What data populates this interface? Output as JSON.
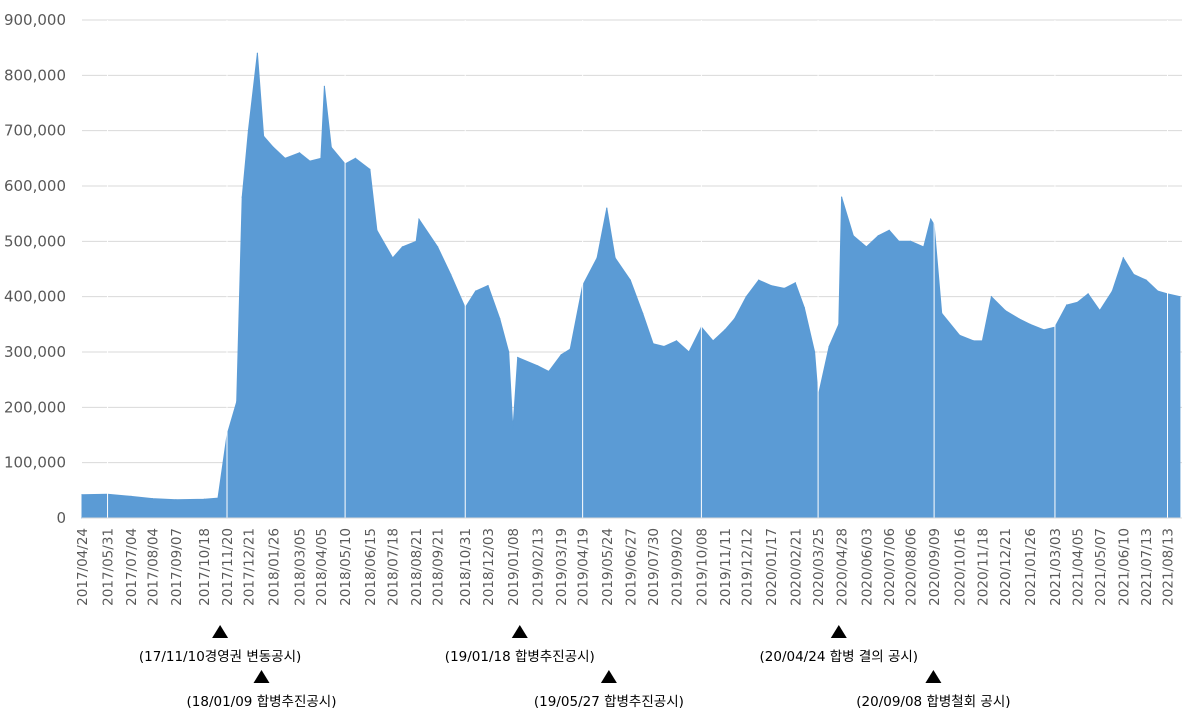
{
  "chart_data": {
    "type": "area",
    "title": "",
    "xlabel": "",
    "ylabel": "",
    "ylim": [
      0,
      900000
    ],
    "grid": true,
    "legend": "none",
    "colors": {
      "series": "#5b9bd5",
      "grid": "#d9d9d9",
      "axis_text": "#595959"
    },
    "y_ticks": [
      0,
      100000,
      200000,
      300000,
      400000,
      500000,
      600000,
      700000,
      800000,
      900000
    ],
    "y_tick_labels": [
      "0",
      "100,000",
      "200,000",
      "300,000",
      "400,000",
      "500,000",
      "600,000",
      "700,000",
      "800,000",
      "900,000"
    ],
    "x_tick_labels": [
      "2017/04/24",
      "2017/05/31",
      "2017/07/04",
      "2017/08/04",
      "2017/09/07",
      "2017/10/18",
      "2017/11/20",
      "2017/12/21",
      "2018/01/26",
      "2018/03/05",
      "2018/04/05",
      "2018/05/10",
      "2018/06/15",
      "2018/07/18",
      "2018/08/21",
      "2018/09/21",
      "2018/10/31",
      "2018/12/03",
      "2019/01/08",
      "2019/02/13",
      "2019/03/19",
      "2019/04/19",
      "2019/05/24",
      "2019/06/27",
      "2019/07/30",
      "2019/09/02",
      "2019/10/08",
      "2019/11/11",
      "2019/12/12",
      "2020/01/17",
      "2020/02/21",
      "2020/03/25",
      "2020/04/28",
      "2020/06/03",
      "2020/07/06",
      "2020/08/06",
      "2020/09/09",
      "2020/10/16",
      "2020/11/18",
      "2020/12/21",
      "2021/01/26",
      "2021/03/03",
      "2021/04/05",
      "2021/05/07",
      "2021/06/10",
      "2021/07/13",
      "2021/08/13"
    ],
    "series": [
      {
        "x": [
          "2017/04/24",
          "2017/05/31",
          "2017/07/04",
          "2017/08/04",
          "2017/09/07",
          "2017/10/18",
          "2017/11/07",
          "2017/11/20",
          "2017/12/04",
          "2017/12/12",
          "2017/12/21",
          "2018/01/03",
          "2018/01/12",
          "2018/01/26",
          "2018/02/12",
          "2018/03/05",
          "2018/03/20",
          "2018/04/05",
          "2018/04/10",
          "2018/04/20",
          "2018/05/10",
          "2018/05/25",
          "2018/06/15",
          "2018/06/25",
          "2018/07/18",
          "2018/08/01",
          "2018/08/21",
          "2018/08/25",
          "2018/09/21",
          "2018/10/10",
          "2018/10/31",
          "2018/11/15",
          "2018/12/03",
          "2018/12/20",
          "2019/01/02",
          "2019/01/08",
          "2019/01/15",
          "2019/02/13",
          "2019/03/01",
          "2019/03/19",
          "2019/04/01",
          "2019/04/19",
          "2019/05/10",
          "2019/05/24",
          "2019/06/05",
          "2019/06/27",
          "2019/07/15",
          "2019/07/30",
          "2019/08/15",
          "2019/09/02",
          "2019/09/20",
          "2019/10/08",
          "2019/10/25",
          "2019/11/11",
          "2019/11/25",
          "2019/12/12",
          "2019/12/30",
          "2020/01/17",
          "2020/02/05",
          "2020/02/21",
          "2020/03/05",
          "2020/03/20",
          "2020/03/25",
          "2020/04/10",
          "2020/04/24",
          "2020/04/28",
          "2020/05/15",
          "2020/06/03",
          "2020/06/20",
          "2020/07/06",
          "2020/07/20",
          "2020/08/06",
          "2020/08/25",
          "2020/09/04",
          "2020/09/09",
          "2020/09/20",
          "2020/10/16",
          "2020/11/05",
          "2020/11/18",
          "2020/12/01",
          "2020/12/21",
          "2021/01/10",
          "2021/01/26",
          "2021/02/15",
          "2021/03/03",
          "2021/03/20",
          "2021/04/05",
          "2021/04/20",
          "2021/05/07",
          "2021/05/25",
          "2021/06/10",
          "2021/06/25",
          "2021/07/13",
          "2021/07/30",
          "2021/08/13",
          "2021/08/31"
        ],
        "values": [
          42000,
          43000,
          39000,
          35000,
          33000,
          34000,
          36000,
          150000,
          210000,
          580000,
          700000,
          840000,
          690000,
          670000,
          650000,
          660000,
          645000,
          650000,
          780000,
          670000,
          640000,
          650000,
          630000,
          520000,
          470000,
          490000,
          500000,
          540000,
          490000,
          440000,
          380000,
          410000,
          420000,
          360000,
          300000,
          160000,
          290000,
          275000,
          265000,
          295000,
          305000,
          420000,
          470000,
          560000,
          470000,
          430000,
          370000,
          315000,
          310000,
          320000,
          300000,
          345000,
          320000,
          340000,
          360000,
          400000,
          430000,
          420000,
          415000,
          425000,
          380000,
          300000,
          220000,
          310000,
          350000,
          580000,
          510000,
          490000,
          510000,
          520000,
          500000,
          500000,
          490000,
          540000,
          530000,
          370000,
          330000,
          320000,
          320000,
          400000,
          375000,
          360000,
          350000,
          340000,
          345000,
          385000,
          390000,
          405000,
          375000,
          410000,
          470000,
          440000,
          430000,
          410000,
          405000,
          400000
        ]
      }
    ],
    "annotations": [
      {
        "text": "(17/11/10경영권  변동공시)",
        "date": "2017/11/10"
      },
      {
        "text": "(18/01/09 합병추진공시)",
        "date": "2018/01/09"
      },
      {
        "text": "(19/01/18 합병추진공시)",
        "date": "2019/01/18"
      },
      {
        "text": "(19/05/27 합병추진공시)",
        "date": "2019/05/27"
      },
      {
        "text": "(20/04/24 합병 결의 공시)",
        "date": "2020/04/24"
      },
      {
        "text": "(20/09/08 합병철회 공시)",
        "date": "2020/09/08"
      }
    ]
  }
}
